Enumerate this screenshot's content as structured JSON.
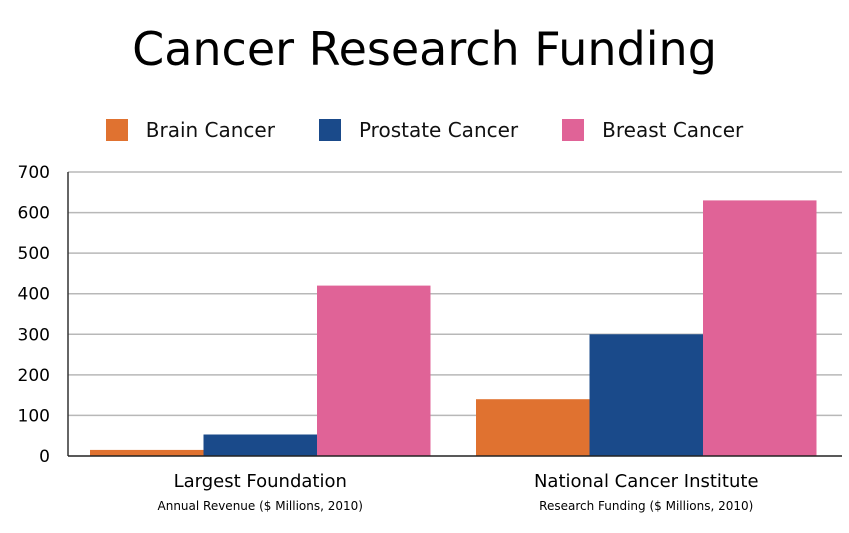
{
  "chart_data": {
    "type": "bar",
    "title": "Cancer Research Funding",
    "categories": [
      "Largest Foundation",
      "National Cancer Institute"
    ],
    "category_sublabels": [
      "Annual Revenue ($ Millions, 2010)",
      "Research Funding ($ Millions, 2010)"
    ],
    "series": [
      {
        "name": "Brain Cancer",
        "color": "#e07230",
        "values": [
          15,
          140
        ]
      },
      {
        "name": "Prostate Cancer",
        "color": "#1a4a8a",
        "values": [
          53,
          300
        ]
      },
      {
        "name": "Breast Cancer",
        "color": "#e06397",
        "values": [
          420,
          630
        ]
      }
    ],
    "ylim": [
      0,
      700
    ],
    "yticks": [
      0,
      100,
      200,
      300,
      400,
      500,
      600,
      700
    ],
    "grid": true,
    "legend": "top-center",
    "xlabel": "",
    "ylabel": ""
  }
}
